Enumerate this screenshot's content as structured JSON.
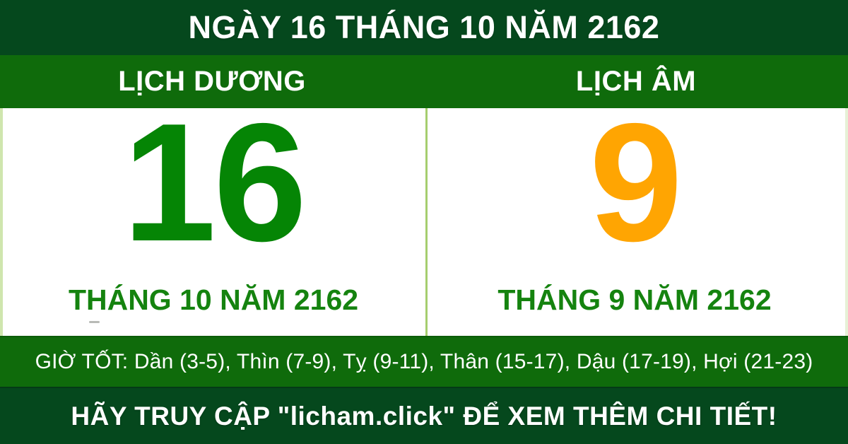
{
  "header": {
    "title": "NGÀY 16 THÁNG 10 NĂM 2162"
  },
  "columns": {
    "solar_label": "LỊCH DƯƠNG",
    "lunar_label": "LỊCH ÂM"
  },
  "solar": {
    "day": "16",
    "month_line": "THÁNG 10 NĂM 2162"
  },
  "lunar": {
    "day": "9",
    "month_line": "THÁNG 9 NĂM 2162"
  },
  "good_hours": {
    "text": "GIỜ TỐT: Dần (3-5), Thìn (7-9), Tỵ (9-11), Thân (15-17), Dậu (17-19), Hợi (21-23)"
  },
  "footer": {
    "text": "HÃY TRUY CẬP \"licham.click\" ĐỂ XEM THÊM CHI TIẾT!"
  },
  "colors": {
    "dark_green": "#05481d",
    "band_green": "#0f6b0b",
    "solar_day_green": "#058505",
    "lunar_day_orange": "#ffa502",
    "month_text_green": "#15830f",
    "divider_light_green": "#a6ce6e",
    "text_white": "#ffffff"
  }
}
